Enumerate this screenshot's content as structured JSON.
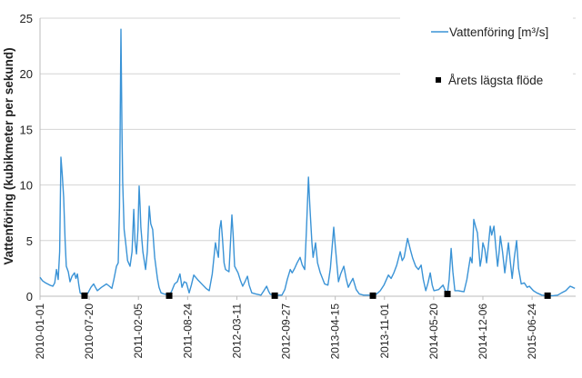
{
  "chart_data": {
    "type": "line",
    "title": "",
    "xlabel": "",
    "ylabel": "Vattenföring (kubikmeter per sekund)",
    "x_unit": "days since 2010-01-01",
    "xlim": [
      0,
      2177
    ],
    "ylim": [
      0,
      25
    ],
    "yticks": [
      0,
      5,
      10,
      15,
      20,
      25
    ],
    "xticks": [
      {
        "day": 0,
        "label": "2010-01-01"
      },
      {
        "day": 200,
        "label": "2010-07-20"
      },
      {
        "day": 400,
        "label": "2011-02-05"
      },
      {
        "day": 600,
        "label": "2011-08-24"
      },
      {
        "day": 800,
        "label": "2012-03-11"
      },
      {
        "day": 1000,
        "label": "2012-09-27"
      },
      {
        "day": 1200,
        "label": "2013-04-15"
      },
      {
        "day": 1400,
        "label": "2013-11-01"
      },
      {
        "day": 1600,
        "label": "2014-05-20"
      },
      {
        "day": 1800,
        "label": "2014-12-06"
      },
      {
        "day": 2000,
        "label": "2015-06-24"
      }
    ],
    "grid": "horizontal",
    "legend_position": "top-right",
    "series": [
      {
        "name": "Vattenföring [m³/s]",
        "kind": "line",
        "color": "#3a93d6",
        "points": [
          [
            0,
            1.7
          ],
          [
            10,
            1.4
          ],
          [
            22,
            1.2
          ],
          [
            40,
            1.0
          ],
          [
            52,
            0.9
          ],
          [
            60,
            1.2
          ],
          [
            67,
            2.4
          ],
          [
            74,
            1.5
          ],
          [
            80,
            4
          ],
          [
            85,
            12.5
          ],
          [
            90,
            11
          ],
          [
            96,
            8.9
          ],
          [
            102,
            5
          ],
          [
            107,
            2.7
          ],
          [
            115,
            2.2
          ],
          [
            122,
            1.3
          ],
          [
            130,
            1.8
          ],
          [
            140,
            2.1
          ],
          [
            146,
            1.6
          ],
          [
            152,
            2.0
          ],
          [
            158,
            1.0
          ],
          [
            163,
            0.3
          ],
          [
            172,
            0.15
          ],
          [
            181,
            0.05
          ],
          [
            195,
            0.3
          ],
          [
            207,
            0.8
          ],
          [
            218,
            1.1
          ],
          [
            225,
            0.8
          ],
          [
            233,
            0.5
          ],
          [
            250,
            0.8
          ],
          [
            270,
            1.1
          ],
          [
            282,
            0.9
          ],
          [
            292,
            0.7
          ],
          [
            300,
            1.5
          ],
          [
            311,
            2.7
          ],
          [
            318,
            3.0
          ],
          [
            323,
            8
          ],
          [
            329,
            24
          ],
          [
            333,
            15
          ],
          [
            336,
            10.3
          ],
          [
            342,
            6
          ],
          [
            348,
            4.8
          ],
          [
            356,
            3.2
          ],
          [
            366,
            2.7
          ],
          [
            374,
            4
          ],
          [
            381,
            7.8
          ],
          [
            386,
            5
          ],
          [
            392,
            3.8
          ],
          [
            398,
            6
          ],
          [
            403,
            9.9
          ],
          [
            407,
            8
          ],
          [
            410,
            6.2
          ],
          [
            418,
            4
          ],
          [
            429,
            2.4
          ],
          [
            436,
            4
          ],
          [
            444,
            8.1
          ],
          [
            450,
            6.5
          ],
          [
            458,
            6.0
          ],
          [
            466,
            3.5
          ],
          [
            477,
            1.6
          ],
          [
            484,
            0.8
          ],
          [
            492,
            0.3
          ],
          [
            505,
            0.2
          ],
          [
            515,
            0.15
          ],
          [
            525,
            0.05
          ],
          [
            536,
            0.5
          ],
          [
            547,
            1.1
          ],
          [
            558,
            1.3
          ],
          [
            569,
            2.0
          ],
          [
            577,
            0.8
          ],
          [
            586,
            1.3
          ],
          [
            595,
            1.2
          ],
          [
            606,
            0.3
          ],
          [
            615,
            1.0
          ],
          [
            625,
            1.9
          ],
          [
            640,
            1.5
          ],
          [
            662,
            1.0
          ],
          [
            675,
            0.7
          ],
          [
            688,
            0.5
          ],
          [
            700,
            2
          ],
          [
            713,
            4.8
          ],
          [
            718,
            4.2
          ],
          [
            725,
            3.5
          ],
          [
            730,
            6
          ],
          [
            736,
            6.8
          ],
          [
            742,
            5
          ],
          [
            748,
            3
          ],
          [
            754,
            2.4
          ],
          [
            768,
            2.2
          ],
          [
            780,
            7.3
          ],
          [
            785,
            5.5
          ],
          [
            791,
            2.7
          ],
          [
            805,
            2.1
          ],
          [
            815,
            1.4
          ],
          [
            824,
            0.9
          ],
          [
            835,
            1.4
          ],
          [
            843,
            1.8
          ],
          [
            850,
            1.0
          ],
          [
            861,
            0.3
          ],
          [
            878,
            0.2
          ],
          [
            898,
            0.1
          ],
          [
            910,
            0.5
          ],
          [
            921,
            0.9
          ],
          [
            928,
            0.5
          ],
          [
            935,
            0.2
          ],
          [
            945,
            0.1
          ],
          [
            954,
            0.05
          ],
          [
            970,
            0.1
          ],
          [
            983,
            0.1
          ],
          [
            995,
            0.6
          ],
          [
            1005,
            1.5
          ],
          [
            1017,
            2.4
          ],
          [
            1025,
            2.1
          ],
          [
            1035,
            2.5
          ],
          [
            1045,
            3.0
          ],
          [
            1057,
            3.5
          ],
          [
            1066,
            2.8
          ],
          [
            1076,
            2.4
          ],
          [
            1083,
            6
          ],
          [
            1091,
            10.7
          ],
          [
            1097,
            8
          ],
          [
            1105,
            4.8
          ],
          [
            1110,
            3.5
          ],
          [
            1120,
            4.8
          ],
          [
            1128,
            3
          ],
          [
            1139,
            2.1
          ],
          [
            1148,
            1.6
          ],
          [
            1157,
            1.1
          ],
          [
            1170,
            1.0
          ],
          [
            1180,
            2.5
          ],
          [
            1194,
            6.2
          ],
          [
            1200,
            4.5
          ],
          [
            1213,
            1.3
          ],
          [
            1222,
            2
          ],
          [
            1235,
            2.7
          ],
          [
            1244,
            1.6
          ],
          [
            1253,
            0.8
          ],
          [
            1262,
            1.2
          ],
          [
            1272,
            1.6
          ],
          [
            1285,
            0.6
          ],
          [
            1298,
            0.2
          ],
          [
            1315,
            0.1
          ],
          [
            1335,
            0.1
          ],
          [
            1353,
            0.05
          ],
          [
            1368,
            0.2
          ],
          [
            1383,
            0.5
          ],
          [
            1398,
            1.0
          ],
          [
            1416,
            1.9
          ],
          [
            1427,
            1.6
          ],
          [
            1438,
            2.1
          ],
          [
            1450,
            2.8
          ],
          [
            1464,
            4.0
          ],
          [
            1472,
            3.2
          ],
          [
            1480,
            3.5
          ],
          [
            1494,
            5.2
          ],
          [
            1505,
            4.2
          ],
          [
            1515,
            3.4
          ],
          [
            1527,
            2.7
          ],
          [
            1538,
            2.4
          ],
          [
            1549,
            2.8
          ],
          [
            1558,
            1.5
          ],
          [
            1568,
            0.5
          ],
          [
            1577,
            1.2
          ],
          [
            1586,
            2.1
          ],
          [
            1594,
            1.0
          ],
          [
            1601,
            0.5
          ],
          [
            1620,
            0.6
          ],
          [
            1638,
            1.0
          ],
          [
            1647,
            0.5
          ],
          [
            1656,
            0.2
          ],
          [
            1663,
            1.5
          ],
          [
            1671,
            4.3
          ],
          [
            1678,
            2.2
          ],
          [
            1686,
            0.5
          ],
          [
            1700,
            0.5
          ],
          [
            1723,
            0.4
          ],
          [
            1735,
            1.5
          ],
          [
            1749,
            3.5
          ],
          [
            1756,
            3.0
          ],
          [
            1763,
            6.9
          ],
          [
            1770,
            6.3
          ],
          [
            1778,
            5.7
          ],
          [
            1784,
            4.0
          ],
          [
            1789,
            2.7
          ],
          [
            1795,
            3.5
          ],
          [
            1800,
            4.8
          ],
          [
            1808,
            4.2
          ],
          [
            1815,
            3.0
          ],
          [
            1822,
            4.5
          ],
          [
            1830,
            6.3
          ],
          [
            1836,
            5.5
          ],
          [
            1845,
            6.3
          ],
          [
            1852,
            4.5
          ],
          [
            1860,
            2.7
          ],
          [
            1866,
            4.0
          ],
          [
            1871,
            5.4
          ],
          [
            1880,
            4.0
          ],
          [
            1889,
            2.1
          ],
          [
            1897,
            3.5
          ],
          [
            1904,
            4.8
          ],
          [
            1912,
            3.0
          ],
          [
            1919,
            1.6
          ],
          [
            1928,
            3.5
          ],
          [
            1937,
            5.0
          ],
          [
            1945,
            2.5
          ],
          [
            1956,
            1.1
          ],
          [
            1968,
            1.2
          ],
          [
            1980,
            0.8
          ],
          [
            1989,
            0.9
          ],
          [
            2005,
            0.5
          ],
          [
            2019,
            0.3
          ],
          [
            2040,
            0.1
          ],
          [
            2063,
            0.05
          ],
          [
            2085,
            0.05
          ],
          [
            2104,
            0.1
          ],
          [
            2120,
            0.3
          ],
          [
            2137,
            0.5
          ],
          [
            2146,
            0.7
          ],
          [
            2155,
            0.9
          ],
          [
            2165,
            0.8
          ],
          [
            2174,
            0.7
          ]
        ]
      },
      {
        "name": "Årets lägsta flöde",
        "kind": "marker",
        "color": "#000000",
        "points": [
          [
            181,
            0.05
          ],
          [
            525,
            0.05
          ],
          [
            954,
            0.05
          ],
          [
            1353,
            0.05
          ],
          [
            1656,
            0.2
          ],
          [
            2063,
            0.05
          ]
        ]
      }
    ]
  }
}
